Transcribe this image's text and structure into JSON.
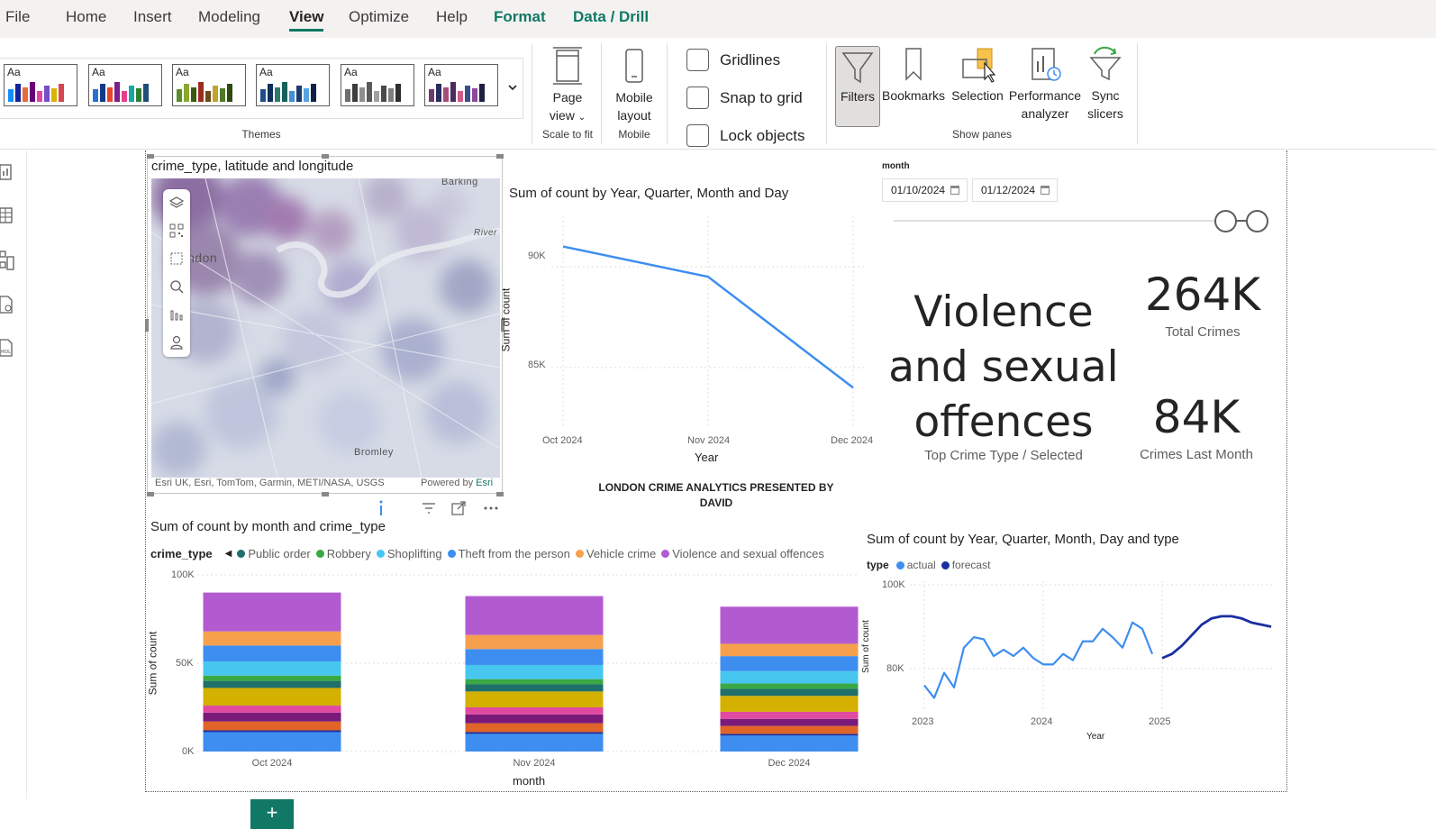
{
  "menu": {
    "items": [
      "File",
      "Home",
      "Insert",
      "Modeling",
      "View",
      "Optimize",
      "Help",
      "Format",
      "Data / Drill"
    ],
    "active": "View"
  },
  "ribbon": {
    "themes_label": "Themes",
    "theme_swatch_text": "Aa",
    "page_view": {
      "line1": "Page",
      "line2": "view",
      "group": "Scale to fit"
    },
    "mobile_layout": {
      "line1": "Mobile",
      "line2": "layout",
      "group": "Mobile"
    },
    "checkboxes": [
      "Gridlines",
      "Snap to grid",
      "Lock objects"
    ],
    "panes": {
      "filters": "Filters",
      "bookmarks": "Bookmarks",
      "selection": "Selection",
      "performance": {
        "line1": "Performance",
        "line2": "analyzer"
      },
      "sync": {
        "line1": "Sync",
        "line2": "slicers"
      },
      "group": "Show panes"
    }
  },
  "map": {
    "title": "crime_type, latitude and longitude",
    "labels": {
      "barking": "Barking",
      "london": "ndon",
      "river": "River",
      "bromley": "Bromley"
    },
    "credit": "Esri UK, Esri, TomTom, Garmin, METI/NASA, USGS",
    "powered_by": "Powered by",
    "powered_brand": "Esri"
  },
  "line_chart": {
    "title": "Sum of count by Year, Quarter, Month and Day",
    "xlabel": "Year",
    "ylabel": "Sum of count",
    "yticks": [
      "90K",
      "85K"
    ],
    "xticks": [
      "Oct 2024",
      "Nov 2024",
      "Dec 2024"
    ]
  },
  "slicer": {
    "title": "month",
    "start": "01/10/2024",
    "end": "01/12/2024"
  },
  "kpis": {
    "top_type_line1": "Violence",
    "top_type_line2": "and sexual",
    "top_type_line3": "offences",
    "top_type_label": "Top Crime Type / Selected",
    "total": "264K",
    "total_label": "Total Crimes",
    "last_month": "84K",
    "last_month_label": "Crimes Last Month"
  },
  "presenter_text_line1": "LONDON CRIME ANALYTICS PRESENTED BY",
  "presenter_text_line2": "DAVID",
  "stacked_chart": {
    "title": "Sum of count by month and crime_type",
    "legend_title": "crime_type",
    "legend": [
      {
        "name": "Public order",
        "color": "#1f6f6b"
      },
      {
        "name": "Robbery",
        "color": "#3aa845"
      },
      {
        "name": "Shoplifting",
        "color": "#47c6f0"
      },
      {
        "name": "Theft from the person",
        "color": "#3d8ef0"
      },
      {
        "name": "Vehicle crime",
        "color": "#f6a04d"
      },
      {
        "name": "Violence and sexual offences",
        "color": "#b25bd1"
      }
    ],
    "yticks": [
      "100K",
      "50K",
      "0K"
    ],
    "xlabel": "month",
    "ylabel": "Sum of count"
  },
  "forecast_chart": {
    "title": "Sum of count by Year, Quarter, Month, Day and type",
    "legend_title": "type",
    "legend": [
      {
        "name": "actual",
        "color": "#3d8ef0"
      },
      {
        "name": "forecast",
        "color": "#1a2fa0"
      }
    ],
    "yticks": [
      "100K",
      "80K"
    ],
    "xticks": [
      "2023",
      "2024",
      "2025"
    ],
    "xlabel": "Year",
    "ylabel": "Sum of count"
  },
  "chart_data": [
    {
      "type": "line",
      "title": "Sum of count by Year, Quarter, Month and Day",
      "xlabel": "Year",
      "ylabel": "Sum of count",
      "categories": [
        "Oct 2024",
        "Nov 2024",
        "Dec 2024"
      ],
      "values": [
        91000,
        89500,
        84000
      ],
      "ylim": [
        82000,
        92500
      ],
      "grid": true
    },
    {
      "type": "bar",
      "stacked": true,
      "title": "Sum of count by month and crime_type",
      "xlabel": "month",
      "ylabel": "Sum of count",
      "categories": [
        "Oct 2024",
        "Nov 2024",
        "Dec 2024"
      ],
      "ylim": [
        0,
        100000
      ],
      "segments_bottom_to_top": [
        {
          "color": "#3d8ef0",
          "values": [
            11000,
            10000,
            9000
          ]
        },
        {
          "color": "#1a2fa0",
          "values": [
            1000,
            1000,
            1000
          ]
        },
        {
          "color": "#e06428",
          "values": [
            5000,
            5000,
            4500
          ]
        },
        {
          "color": "#7a1a7a",
          "values": [
            5000,
            5000,
            4000
          ]
        },
        {
          "color": "#e04aa0",
          "values": [
            4000,
            4000,
            4000
          ]
        },
        {
          "color": "#d4b000",
          "values": [
            10000,
            9000,
            9000
          ]
        },
        {
          "color": "#1f6f6b",
          "values": [
            4000,
            4000,
            4000
          ]
        },
        {
          "color": "#3aa845",
          "values": [
            3000,
            3000,
            3000
          ]
        },
        {
          "color": "#47c6f0",
          "values": [
            8000,
            8000,
            7000
          ]
        },
        {
          "color": "#3d8ef0",
          "values": [
            9000,
            9000,
            8500
          ]
        },
        {
          "color": "#f6a04d",
          "values": [
            8000,
            8000,
            7000
          ]
        },
        {
          "color": "#b25bd1",
          "values": [
            22000,
            22000,
            21000
          ]
        }
      ]
    },
    {
      "type": "line",
      "title": "Sum of count by Year, Quarter, Month, Day and type",
      "xlabel": "Year",
      "ylabel": "Sum of count",
      "xlim": [
        2022.75,
        2026.0
      ],
      "ylim": [
        70000,
        100000
      ],
      "grid": true,
      "series": [
        {
          "name": "actual",
          "color": "#3d8ef0",
          "x": [
            2023.0,
            2023.083,
            2023.167,
            2023.25,
            2023.333,
            2023.417,
            2023.5,
            2023.583,
            2023.667,
            2023.75,
            2023.833,
            2023.917,
            2024.0,
            2024.083,
            2024.167,
            2024.25,
            2024.333,
            2024.417,
            2024.5,
            2024.583,
            2024.667,
            2024.75,
            2024.833,
            2024.917
          ],
          "y": [
            76000,
            73000,
            79000,
            75500,
            85000,
            87500,
            87000,
            83000,
            84500,
            83000,
            85000,
            82500,
            81000,
            81000,
            83500,
            82000,
            86500,
            86500,
            89500,
            87500,
            85000,
            91000,
            89500,
            83500
          ]
        },
        {
          "name": "forecast",
          "color": "#1a2fa0",
          "x": [
            2025.0,
            2025.083,
            2025.167,
            2025.25,
            2025.333,
            2025.417,
            2025.5,
            2025.583,
            2025.667,
            2025.75,
            2025.833,
            2025.917
          ],
          "y": [
            82500,
            83500,
            85500,
            88000,
            90500,
            92000,
            92500,
            92500,
            92000,
            91000,
            90500,
            90000
          ]
        }
      ]
    }
  ]
}
